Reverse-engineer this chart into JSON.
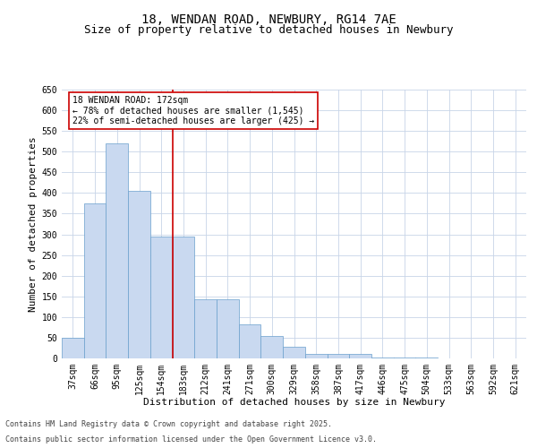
{
  "title_line1": "18, WENDAN ROAD, NEWBURY, RG14 7AE",
  "title_line2": "Size of property relative to detached houses in Newbury",
  "xlabel": "Distribution of detached houses by size in Newbury",
  "ylabel": "Number of detached properties",
  "categories": [
    "37sqm",
    "66sqm",
    "95sqm",
    "125sqm",
    "154sqm",
    "183sqm",
    "212sqm",
    "241sqm",
    "271sqm",
    "300sqm",
    "329sqm",
    "358sqm",
    "387sqm",
    "417sqm",
    "446sqm",
    "475sqm",
    "504sqm",
    "533sqm",
    "563sqm",
    "592sqm",
    "621sqm"
  ],
  "values": [
    50,
    375,
    520,
    405,
    295,
    295,
    143,
    143,
    82,
    55,
    28,
    10,
    10,
    10,
    2,
    2,
    3,
    1,
    1,
    1,
    1
  ],
  "bar_color": "#c9d9f0",
  "bar_edge_color": "#6a9fcc",
  "red_line_index": 5,
  "annotation_text": "18 WENDAN ROAD: 172sqm\n← 78% of detached houses are smaller (1,545)\n22% of semi-detached houses are larger (425) →",
  "annotation_box_color": "#ffffff",
  "annotation_box_edge": "#cc0000",
  "ylim": [
    0,
    650
  ],
  "yticks": [
    0,
    50,
    100,
    150,
    200,
    250,
    300,
    350,
    400,
    450,
    500,
    550,
    600,
    650
  ],
  "background_color": "#ffffff",
  "grid_color": "#c8d4e8",
  "footer_line1": "Contains HM Land Registry data © Crown copyright and database right 2025.",
  "footer_line2": "Contains public sector information licensed under the Open Government Licence v3.0.",
  "title_fontsize": 10,
  "subtitle_fontsize": 9,
  "axis_label_fontsize": 8,
  "tick_fontsize": 7,
  "annotation_fontsize": 7,
  "footer_fontsize": 6
}
